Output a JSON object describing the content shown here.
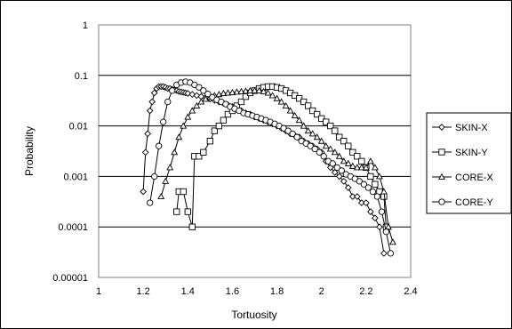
{
  "chart_data": {
    "type": "scatter",
    "title": "",
    "xlabel": "Tortuosity",
    "ylabel": "Probability",
    "xlim": [
      1,
      2.4
    ],
    "ylim": [
      1e-05,
      1
    ],
    "yscale": "log",
    "grid": "horizontal",
    "legend_position": "right",
    "x_ticks": [
      "1",
      "1.2",
      "1.4",
      "1.6",
      "1.8",
      "2",
      "2.2",
      "2.4"
    ],
    "y_ticks": [
      "1",
      "0.1",
      "0.01",
      "0.001",
      "0.0001",
      "0.00001"
    ],
    "series": [
      {
        "name": "SKIN-X",
        "marker": "diamond",
        "points": [
          [
            1.2,
            0.0005
          ],
          [
            1.21,
            0.003
          ],
          [
            1.22,
            0.007
          ],
          [
            1.23,
            0.02
          ],
          [
            1.24,
            0.03
          ],
          [
            1.25,
            0.045
          ],
          [
            1.26,
            0.055
          ],
          [
            1.27,
            0.06
          ],
          [
            1.28,
            0.06
          ],
          [
            1.29,
            0.06
          ],
          [
            1.3,
            0.058
          ],
          [
            1.31,
            0.055
          ],
          [
            1.32,
            0.055
          ],
          [
            1.33,
            0.053
          ],
          [
            1.34,
            0.052
          ],
          [
            1.35,
            0.05
          ],
          [
            1.36,
            0.048
          ],
          [
            1.37,
            0.047
          ],
          [
            1.38,
            0.046
          ],
          [
            1.39,
            0.045
          ],
          [
            1.4,
            0.044
          ],
          [
            1.42,
            0.042
          ],
          [
            1.44,
            0.04
          ],
          [
            1.46,
            0.038
          ],
          [
            1.48,
            0.036
          ],
          [
            1.5,
            0.034
          ],
          [
            1.52,
            0.032
          ],
          [
            1.54,
            0.03
          ],
          [
            1.56,
            0.028
          ],
          [
            1.58,
            0.026
          ],
          [
            1.6,
            0.024
          ],
          [
            1.62,
            0.022
          ],
          [
            1.64,
            0.02
          ],
          [
            1.66,
            0.018
          ],
          [
            1.68,
            0.017
          ],
          [
            1.7,
            0.015
          ],
          [
            1.72,
            0.014
          ],
          [
            1.74,
            0.013
          ],
          [
            1.76,
            0.012
          ],
          [
            1.78,
            0.011
          ],
          [
            1.8,
            0.01
          ],
          [
            1.82,
            0.009
          ],
          [
            1.84,
            0.008
          ],
          [
            1.86,
            0.007
          ],
          [
            1.88,
            0.0065
          ],
          [
            1.9,
            0.006
          ],
          [
            1.92,
            0.005
          ],
          [
            1.94,
            0.0045
          ],
          [
            1.96,
            0.004
          ],
          [
            1.98,
            0.0035
          ],
          [
            2.0,
            0.003
          ],
          [
            2.02,
            0.002
          ],
          [
            2.04,
            0.0015
          ],
          [
            2.06,
            0.0012
          ],
          [
            2.08,
            0.001
          ],
          [
            2.1,
            0.0008
          ],
          [
            2.12,
            0.0006
          ],
          [
            2.14,
            0.0004
          ],
          [
            2.16,
            0.0004
          ],
          [
            2.18,
            0.0003
          ],
          [
            2.2,
            0.0003
          ],
          [
            2.22,
            0.0002
          ],
          [
            2.24,
            0.00015
          ],
          [
            2.26,
            0.0001
          ],
          [
            2.28,
            3e-05
          ]
        ]
      },
      {
        "name": "SKIN-Y",
        "marker": "square",
        "points": [
          [
            1.35,
            0.0002
          ],
          [
            1.36,
            0.0005
          ],
          [
            1.38,
            0.0005
          ],
          [
            1.4,
            0.0002
          ],
          [
            1.42,
            0.0001
          ],
          [
            1.43,
            0.0025
          ],
          [
            1.45,
            0.0025
          ],
          [
            1.47,
            0.003
          ],
          [
            1.5,
            0.005
          ],
          [
            1.52,
            0.008
          ],
          [
            1.54,
            0.01
          ],
          [
            1.56,
            0.013
          ],
          [
            1.58,
            0.017
          ],
          [
            1.6,
            0.02
          ],
          [
            1.62,
            0.025
          ],
          [
            1.64,
            0.03
          ],
          [
            1.66,
            0.038
          ],
          [
            1.68,
            0.045
          ],
          [
            1.7,
            0.05
          ],
          [
            1.72,
            0.055
          ],
          [
            1.74,
            0.058
          ],
          [
            1.76,
            0.06
          ],
          [
            1.78,
            0.06
          ],
          [
            1.8,
            0.058
          ],
          [
            1.82,
            0.055
          ],
          [
            1.84,
            0.05
          ],
          [
            1.86,
            0.045
          ],
          [
            1.88,
            0.04
          ],
          [
            1.9,
            0.035
          ],
          [
            1.92,
            0.03
          ],
          [
            1.94,
            0.025
          ],
          [
            1.96,
            0.02
          ],
          [
            1.98,
            0.017
          ],
          [
            2.0,
            0.014
          ],
          [
            2.02,
            0.012
          ],
          [
            2.04,
            0.01
          ],
          [
            2.06,
            0.008
          ],
          [
            2.08,
            0.006
          ],
          [
            2.1,
            0.005
          ],
          [
            2.12,
            0.004
          ],
          [
            2.14,
            0.003
          ],
          [
            2.16,
            0.0025
          ],
          [
            2.18,
            0.002
          ],
          [
            2.2,
            0.0015
          ],
          [
            2.22,
            0.001
          ],
          [
            2.24,
            0.0007
          ],
          [
            2.26,
            0.0005
          ],
          [
            2.28,
            0.0004
          ],
          [
            2.29,
            0.0001
          ]
        ]
      },
      {
        "name": "CORE-X",
        "marker": "triangle",
        "points": [
          [
            1.28,
            0.0004
          ],
          [
            1.3,
            0.0008
          ],
          [
            1.32,
            0.0015
          ],
          [
            1.34,
            0.003
          ],
          [
            1.36,
            0.006
          ],
          [
            1.38,
            0.01
          ],
          [
            1.4,
            0.015
          ],
          [
            1.42,
            0.02
          ],
          [
            1.44,
            0.025
          ],
          [
            1.46,
            0.03
          ],
          [
            1.48,
            0.034
          ],
          [
            1.5,
            0.037
          ],
          [
            1.52,
            0.04
          ],
          [
            1.54,
            0.042
          ],
          [
            1.56,
            0.044
          ],
          [
            1.58,
            0.045
          ],
          [
            1.6,
            0.046
          ],
          [
            1.62,
            0.047
          ],
          [
            1.64,
            0.048
          ],
          [
            1.66,
            0.049
          ],
          [
            1.68,
            0.05
          ],
          [
            1.7,
            0.05
          ],
          [
            1.72,
            0.05
          ],
          [
            1.74,
            0.048
          ],
          [
            1.76,
            0.045
          ],
          [
            1.78,
            0.04
          ],
          [
            1.8,
            0.035
          ],
          [
            1.82,
            0.03
          ],
          [
            1.84,
            0.025
          ],
          [
            1.86,
            0.02
          ],
          [
            1.88,
            0.016
          ],
          [
            1.9,
            0.013
          ],
          [
            1.92,
            0.01
          ],
          [
            1.94,
            0.008
          ],
          [
            1.96,
            0.007
          ],
          [
            1.98,
            0.006
          ],
          [
            2.0,
            0.005
          ],
          [
            2.02,
            0.004
          ],
          [
            2.04,
            0.0035
          ],
          [
            2.06,
            0.003
          ],
          [
            2.08,
            0.0025
          ],
          [
            2.1,
            0.002
          ],
          [
            2.12,
            0.0018
          ],
          [
            2.14,
            0.0016
          ],
          [
            2.16,
            0.0015
          ],
          [
            2.18,
            0.0015
          ],
          [
            2.2,
            0.0015
          ],
          [
            2.22,
            0.002
          ],
          [
            2.24,
            0.0015
          ],
          [
            2.26,
            0.001
          ],
          [
            2.28,
            0.0005
          ],
          [
            2.3,
            0.0001
          ],
          [
            2.32,
            5e-05
          ]
        ]
      },
      {
        "name": "CORE-Y",
        "marker": "circle",
        "points": [
          [
            1.23,
            0.0003
          ],
          [
            1.25,
            0.001
          ],
          [
            1.27,
            0.004
          ],
          [
            1.29,
            0.012
          ],
          [
            1.31,
            0.03
          ],
          [
            1.33,
            0.05
          ],
          [
            1.35,
            0.065
          ],
          [
            1.37,
            0.072
          ],
          [
            1.39,
            0.075
          ],
          [
            1.41,
            0.072
          ],
          [
            1.43,
            0.065
          ],
          [
            1.45,
            0.058
          ],
          [
            1.47,
            0.05
          ],
          [
            1.49,
            0.043
          ],
          [
            1.51,
            0.037
          ],
          [
            1.53,
            0.033
          ],
          [
            1.55,
            0.03
          ],
          [
            1.57,
            0.027
          ],
          [
            1.59,
            0.024
          ],
          [
            1.61,
            0.022
          ],
          [
            1.63,
            0.02
          ],
          [
            1.65,
            0.018
          ],
          [
            1.67,
            0.017
          ],
          [
            1.69,
            0.016
          ],
          [
            1.71,
            0.015
          ],
          [
            1.73,
            0.014
          ],
          [
            1.75,
            0.013
          ],
          [
            1.77,
            0.012
          ],
          [
            1.79,
            0.011
          ],
          [
            1.81,
            0.01
          ],
          [
            1.83,
            0.009
          ],
          [
            1.85,
            0.008
          ],
          [
            1.87,
            0.007
          ],
          [
            1.89,
            0.006
          ],
          [
            1.91,
            0.005
          ],
          [
            1.93,
            0.0045
          ],
          [
            1.95,
            0.004
          ],
          [
            1.97,
            0.0035
          ],
          [
            1.99,
            0.003
          ],
          [
            2.01,
            0.0025
          ],
          [
            2.03,
            0.002
          ],
          [
            2.05,
            0.0018
          ],
          [
            2.07,
            0.0015
          ],
          [
            2.09,
            0.0013
          ],
          [
            2.11,
            0.0011
          ],
          [
            2.13,
            0.001
          ],
          [
            2.15,
            0.0009
          ],
          [
            2.17,
            0.0008
          ],
          [
            2.19,
            0.0007
          ],
          [
            2.21,
            0.0006
          ],
          [
            2.23,
            0.0005
          ],
          [
            2.25,
            0.0004
          ],
          [
            2.27,
            0.0002
          ],
          [
            2.29,
            8e-05
          ],
          [
            2.31,
            3e-05
          ]
        ]
      }
    ]
  }
}
